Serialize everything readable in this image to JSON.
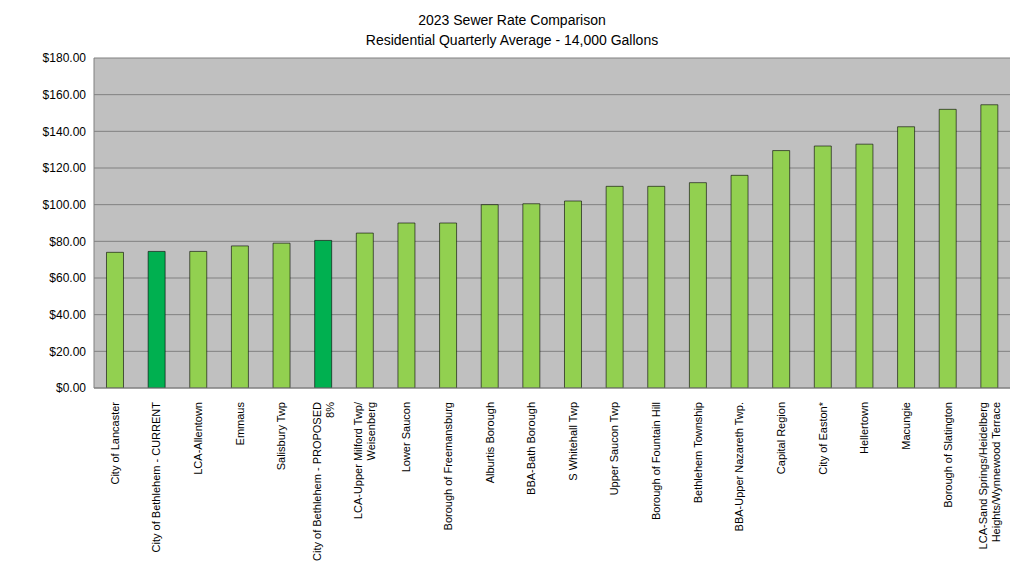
{
  "chart_data": {
    "type": "bar",
    "title": "2023 Sewer Rate Comparison",
    "subtitle": "Residential Quarterly Average - 14,000 Gallons",
    "categories": [
      "City of Lancaster",
      "City of Bethlehem - CURRENT",
      "LCA-Allentown",
      "Emmaus",
      "Salisbury Twp",
      "City of Bethlehem - PROPOSED 8%",
      "LCA-Upper Milford Twp/ Weisenberg",
      "Lower Saucon",
      "Borough of Freemansburg",
      "Alburtis Borough",
      "BBA-Bath Borough",
      "S Whitehall Twp",
      "Upper Saucon Twp",
      "Borough of Fountain Hill",
      "Bethlehem Township",
      "BBA-Upper Nazareth Twp.",
      "Capital Region",
      "City of Easton*",
      "Hellertown",
      "Macungie",
      "Borough of Slatington",
      "LCA-Sand Springs/Heidelberg Heights/Wynnewood Terrace"
    ],
    "values": [
      74,
      74.5,
      74.5,
      77.5,
      79,
      80.5,
      84.5,
      90,
      90,
      100,
      100.5,
      102,
      110,
      110,
      112,
      116,
      129.5,
      132,
      133,
      142.5,
      152,
      154.5
    ],
    "colors": [
      "#92d050",
      "#00b050",
      "#92d050",
      "#92d050",
      "#92d050",
      "#00b050",
      "#92d050",
      "#92d050",
      "#92d050",
      "#92d050",
      "#92d050",
      "#92d050",
      "#92d050",
      "#92d050",
      "#92d050",
      "#92d050",
      "#92d050",
      "#92d050",
      "#92d050",
      "#92d050",
      "#92d050",
      "#92d050"
    ],
    "ylim": [
      0,
      180
    ],
    "yticks": [
      {
        "value": 0,
        "label": "$0.00"
      },
      {
        "value": 20,
        "label": "$20.00"
      },
      {
        "value": 40,
        "label": "$40.00"
      },
      {
        "value": 60,
        "label": "$60.00"
      },
      {
        "value": 80,
        "label": "$80.00"
      },
      {
        "value": 100,
        "label": "$100.00"
      },
      {
        "value": 120,
        "label": "$120.00"
      },
      {
        "value": 140,
        "label": "$140.00"
      },
      {
        "value": 160,
        "label": "$160.00"
      },
      {
        "value": 180,
        "label": "$180.00"
      }
    ],
    "grid": true
  }
}
